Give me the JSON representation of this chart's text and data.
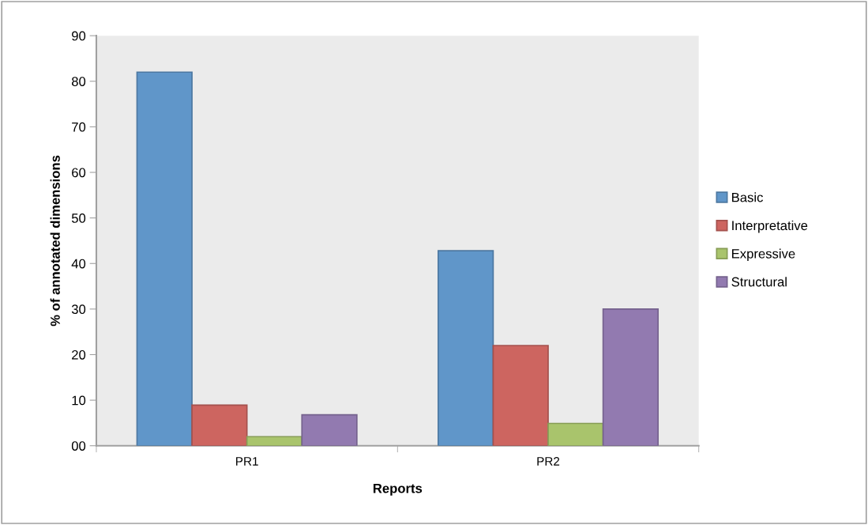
{
  "chart_data": {
    "type": "bar",
    "xlabel": "Reports",
    "ylabel": "% of annotated dimensions",
    "categories": [
      "PR1",
      "PR2"
    ],
    "series": [
      {
        "name": "Basic",
        "color": "#6096c9",
        "values": [
          82,
          42.8
        ]
      },
      {
        "name": "Interpretative",
        "color": "#cd6560",
        "values": [
          8.9,
          22
        ]
      },
      {
        "name": "Expressive",
        "color": "#a9c46c",
        "values": [
          2,
          4.9
        ]
      },
      {
        "name": "Structural",
        "color": "#927ab0",
        "values": [
          6.8,
          30
        ]
      }
    ],
    "ylim": [
      0,
      90
    ],
    "yticks": [
      {
        "value": 0,
        "label": "00"
      },
      10,
      20,
      30,
      40,
      50,
      60,
      70,
      80,
      90
    ],
    "grid": false,
    "legend": "right"
  }
}
